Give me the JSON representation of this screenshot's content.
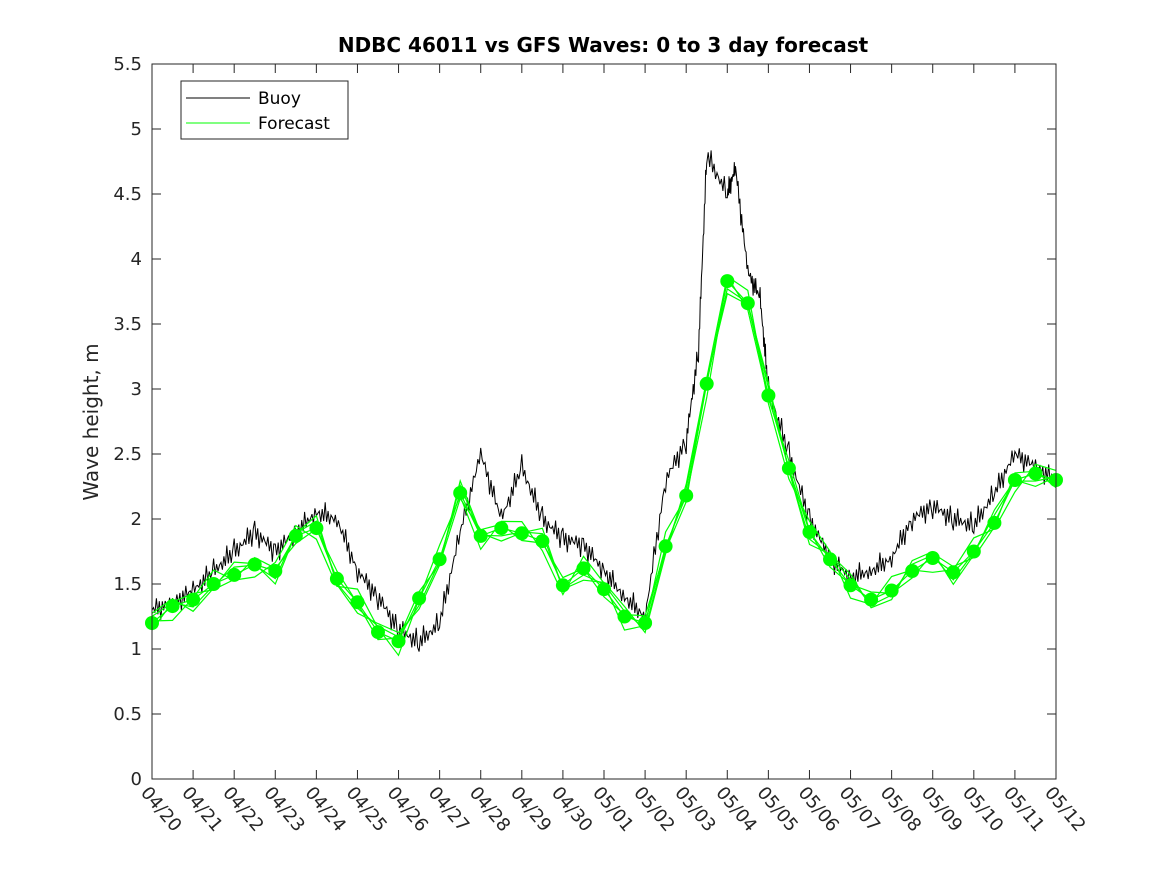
{
  "chart_data": {
    "type": "line",
    "title": "NDBC 46011 vs GFS Waves: 0 to 3 day forecast",
    "xlabel": "",
    "ylabel": "Wave height, m",
    "xlim": [
      "04/20",
      "05/12"
    ],
    "ylim": [
      0,
      5.5
    ],
    "x_tick_labels": [
      "04/20",
      "04/21",
      "04/22",
      "04/23",
      "04/24",
      "04/25",
      "04/26",
      "04/27",
      "04/28",
      "04/29",
      "04/30",
      "05/01",
      "05/02",
      "05/03",
      "05/04",
      "05/05",
      "05/06",
      "05/07",
      "05/08",
      "05/09",
      "05/10",
      "05/11",
      "05/12"
    ],
    "y_ticks": [
      0,
      0.5,
      1,
      1.5,
      2,
      2.5,
      3,
      3.5,
      4,
      4.5,
      5,
      5.5
    ],
    "y_tick_labels": [
      "0",
      "0.5",
      "1",
      "1.5",
      "2",
      "2.5",
      "3",
      "3.5",
      "4",
      "4.5",
      "5",
      "5.5"
    ],
    "grid": false,
    "legend": {
      "placement": "top-left",
      "entries": [
        "Buoy",
        "Forecast"
      ]
    },
    "colors": {
      "buoy": "#000000",
      "forecast": "#00ff00"
    },
    "x_units": "days since 04/20 00:00",
    "series": [
      {
        "name": "Buoy",
        "x": [
          0,
          0.5,
          1,
          1.5,
          2,
          2.5,
          3,
          3.5,
          4,
          4.5,
          5,
          5.5,
          6,
          6.5,
          7,
          7.5,
          8,
          8.5,
          9,
          9.5,
          10,
          10.5,
          11,
          11.5,
          12,
          12.5,
          13,
          13.3,
          13.5,
          14,
          14.2,
          14.5,
          14.8,
          15,
          15.5,
          16,
          16.5,
          17,
          17.5,
          18,
          18.5,
          19,
          19.5,
          20,
          20.5,
          21,
          21.5,
          22
        ],
        "y": [
          1.3,
          1.35,
          1.45,
          1.6,
          1.75,
          1.9,
          1.75,
          1.9,
          2.05,
          2.0,
          1.6,
          1.4,
          1.15,
          1.05,
          1.2,
          1.9,
          2.5,
          2.0,
          2.4,
          2.0,
          1.85,
          1.8,
          1.6,
          1.4,
          1.25,
          2.3,
          2.6,
          3.3,
          4.8,
          4.5,
          4.7,
          3.9,
          3.7,
          3.0,
          2.5,
          2.0,
          1.7,
          1.55,
          1.6,
          1.7,
          2.0,
          2.1,
          2.0,
          1.95,
          2.2,
          2.5,
          2.4,
          2.3
        ]
      },
      {
        "name": "Forecast",
        "x": [
          0,
          0.5,
          1,
          1.5,
          2,
          2.5,
          3,
          3.5,
          4,
          4.5,
          5,
          5.5,
          6,
          6.5,
          7,
          7.5,
          8,
          8.5,
          9,
          9.5,
          10,
          10.5,
          11,
          11.5,
          12,
          12.5,
          13,
          13.5,
          14,
          14.5,
          15,
          15.5,
          16,
          16.5,
          17,
          17.5,
          18,
          18.5,
          19,
          19.5,
          20,
          20.5,
          21,
          21.5,
          22
        ],
        "y": [
          1.2,
          1.33,
          1.38,
          1.5,
          1.57,
          1.65,
          1.6,
          1.87,
          1.93,
          1.54,
          1.36,
          1.13,
          1.06,
          1.39,
          1.69,
          2.2,
          1.87,
          1.93,
          1.89,
          1.83,
          1.49,
          1.62,
          1.46,
          1.25,
          1.2,
          1.79,
          2.18,
          3.04,
          3.83,
          3.66,
          2.95,
          2.39,
          1.9,
          1.69,
          1.49,
          1.38,
          1.45,
          1.6,
          1.7,
          1.59,
          1.75,
          1.97,
          2.3,
          2.35,
          2.3
        ]
      }
    ]
  }
}
